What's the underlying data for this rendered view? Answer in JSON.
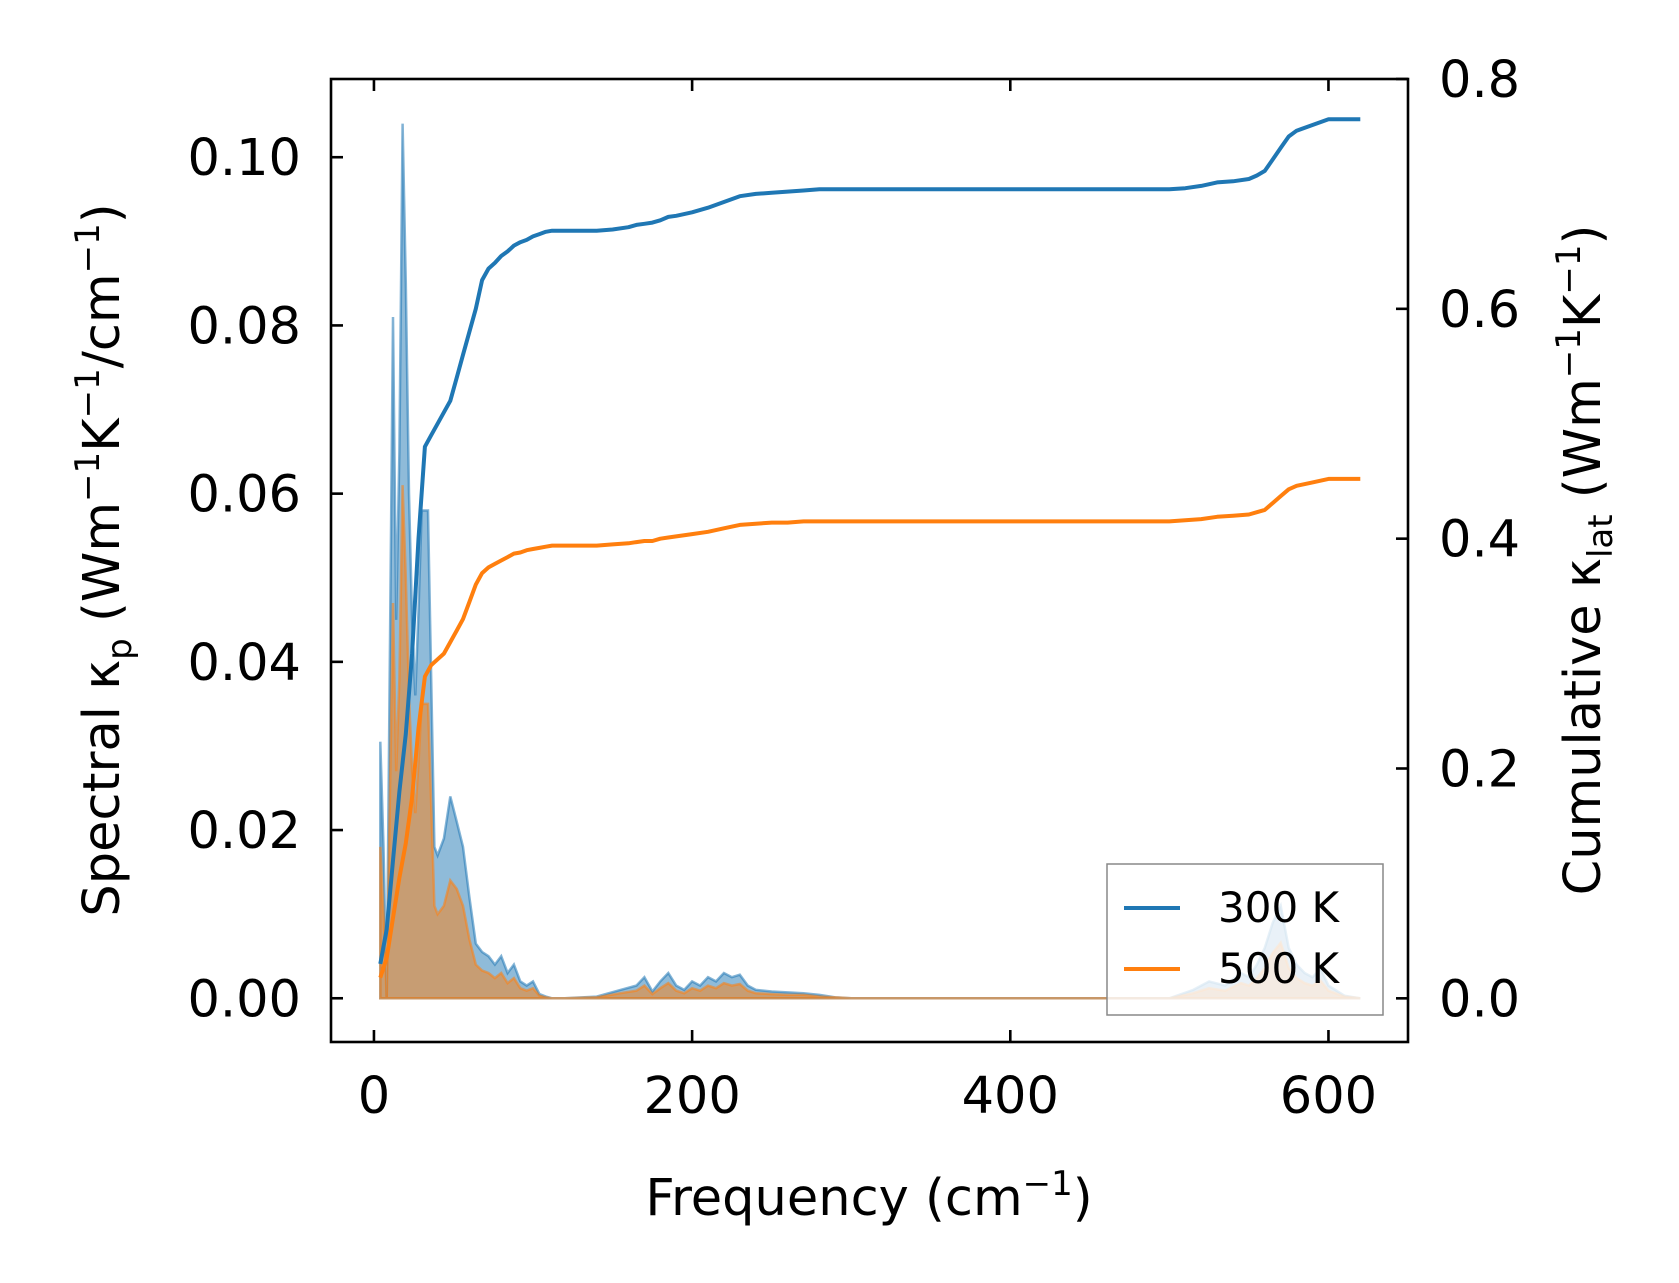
{
  "chart_data": {
    "type": "area",
    "x_label_text": "Frequency (cm",
    "x_label_sup": "−1",
    "x_label_end": ")",
    "y_left_label": {
      "pre": "Spectral κ",
      "sub": "p",
      "mid1": " (Wm",
      "sup1": "−1",
      "mid2": "K",
      "sup2": "−1",
      "mid3": "/cm",
      "sup3": "−1",
      "end": ")"
    },
    "y_right_label": {
      "pre": "Cumulative κ",
      "sub": "lat",
      "mid1": " (Wm",
      "sup1": "−1",
      "mid2": "K",
      "sup2": "−1",
      "end": ")"
    },
    "xlim": [
      -27,
      650
    ],
    "ylim_left": [
      -0.0052,
      0.1093
    ],
    "ylim_right": [
      -0.038,
      0.8
    ],
    "x_ticks": [
      0,
      200,
      400,
      600
    ],
    "x_tick_labels": [
      "0",
      "200",
      "400",
      "600"
    ],
    "y_left_ticks": [
      0.0,
      0.02,
      0.04,
      0.06,
      0.08,
      0.1
    ],
    "y_left_tick_labels": [
      "0.00",
      "0.02",
      "0.04",
      "0.06",
      "0.08",
      "0.10"
    ],
    "y_right_ticks": [
      0.0,
      0.2,
      0.4,
      0.6,
      0.8
    ],
    "y_right_tick_labels": [
      "0.0",
      "0.2",
      "0.4",
      "0.6",
      "0.8"
    ],
    "legend_position": "lower-right",
    "series": [
      {
        "name": "300 K",
        "color": "#1f77b4",
        "spectral": {
          "x": [
            4,
            6,
            8,
            12,
            14,
            16,
            18,
            20,
            22,
            24,
            26,
            28,
            30,
            34,
            38,
            40,
            44,
            48,
            52,
            56,
            60,
            64,
            68,
            72,
            76,
            80,
            84,
            88,
            92,
            96,
            100,
            104,
            108,
            112,
            120,
            140,
            155,
            165,
            170,
            175,
            180,
            185,
            190,
            195,
            200,
            205,
            210,
            215,
            220,
            225,
            230,
            235,
            240,
            250,
            260,
            270,
            280,
            290,
            300,
            500,
            515,
            525,
            535,
            545,
            550,
            555,
            560,
            565,
            570,
            575,
            580,
            585,
            590,
            595,
            600,
            610,
            620
          ],
          "y": [
            0.0305,
            0.018,
            0.0,
            0.081,
            0.045,
            0.065,
            0.104,
            0.085,
            0.06,
            0.045,
            0.036,
            0.046,
            0.058,
            0.058,
            0.018,
            0.017,
            0.019,
            0.024,
            0.021,
            0.018,
            0.012,
            0.0065,
            0.0055,
            0.005,
            0.004,
            0.005,
            0.003,
            0.004,
            0.002,
            0.0015,
            0.002,
            0.0005,
            0.0002,
            0.0,
            0.0,
            0.0002,
            0.001,
            0.0015,
            0.0025,
            0.0008,
            0.002,
            0.003,
            0.0015,
            0.001,
            0.002,
            0.0015,
            0.0025,
            0.002,
            0.003,
            0.0025,
            0.0028,
            0.0015,
            0.001,
            0.0008,
            0.0007,
            0.0006,
            0.0004,
            0.0001,
            0.0,
            0.0,
            0.001,
            0.002,
            0.0015,
            0.003,
            0.0025,
            0.004,
            0.006,
            0.009,
            0.011,
            0.006,
            0.004,
            0.003,
            0.0025,
            0.0035,
            0.0015,
            0.0003,
            0.0
          ]
        },
        "cumulative": {
          "x": [
            4,
            8,
            12,
            16,
            20,
            24,
            28,
            32,
            36,
            40,
            44,
            48,
            52,
            56,
            60,
            64,
            68,
            72,
            76,
            80,
            84,
            88,
            92,
            96,
            100,
            104,
            108,
            112,
            120,
            130,
            140,
            150,
            160,
            165,
            170,
            175,
            180,
            185,
            190,
            200,
            210,
            220,
            230,
            240,
            250,
            260,
            270,
            280,
            300,
            400,
            500,
            510,
            520,
            530,
            540,
            550,
            555,
            560,
            565,
            570,
            575,
            580,
            590,
            600,
            610,
            620
          ],
          "y": [
            0.03,
            0.06,
            0.12,
            0.18,
            0.23,
            0.3,
            0.4,
            0.48,
            0.49,
            0.5,
            0.51,
            0.52,
            0.54,
            0.56,
            0.58,
            0.6,
            0.625,
            0.635,
            0.64,
            0.646,
            0.65,
            0.655,
            0.658,
            0.66,
            0.663,
            0.665,
            0.667,
            0.668,
            0.668,
            0.668,
            0.668,
            0.669,
            0.671,
            0.673,
            0.674,
            0.675,
            0.677,
            0.68,
            0.681,
            0.684,
            0.688,
            0.693,
            0.698,
            0.7,
            0.701,
            0.702,
            0.703,
            0.704,
            0.704,
            0.704,
            0.704,
            0.705,
            0.707,
            0.71,
            0.711,
            0.713,
            0.716,
            0.72,
            0.73,
            0.74,
            0.75,
            0.755,
            0.76,
            0.765,
            0.765,
            0.765
          ]
        }
      },
      {
        "name": "500 K",
        "color": "#ff7f0e",
        "spectral": {
          "x": [
            4,
            6,
            8,
            12,
            14,
            16,
            18,
            20,
            22,
            24,
            26,
            28,
            30,
            34,
            38,
            40,
            44,
            48,
            52,
            56,
            60,
            64,
            68,
            72,
            76,
            80,
            84,
            88,
            92,
            96,
            100,
            104,
            108,
            112,
            120,
            140,
            155,
            165,
            170,
            175,
            180,
            185,
            190,
            195,
            200,
            205,
            210,
            215,
            220,
            225,
            230,
            235,
            240,
            250,
            260,
            270,
            280,
            290,
            300,
            500,
            515,
            525,
            535,
            545,
            550,
            555,
            560,
            565,
            570,
            575,
            580,
            585,
            590,
            595,
            600,
            610,
            620
          ],
          "y": [
            0.018,
            0.01,
            0.0,
            0.047,
            0.027,
            0.038,
            0.061,
            0.05,
            0.036,
            0.027,
            0.022,
            0.028,
            0.035,
            0.035,
            0.011,
            0.01,
            0.011,
            0.014,
            0.013,
            0.011,
            0.007,
            0.004,
            0.0033,
            0.003,
            0.0024,
            0.003,
            0.0018,
            0.0024,
            0.0012,
            0.0009,
            0.0012,
            0.0003,
            0.0001,
            0.0,
            0.0,
            0.0001,
            0.0006,
            0.0009,
            0.0015,
            0.0005,
            0.0012,
            0.0018,
            0.0009,
            0.0006,
            0.0012,
            0.0009,
            0.0015,
            0.0012,
            0.0018,
            0.0015,
            0.0017,
            0.0009,
            0.0006,
            0.0005,
            0.0004,
            0.0004,
            0.0002,
            0.0001,
            0.0,
            0.0,
            0.0006,
            0.0012,
            0.0009,
            0.0018,
            0.0015,
            0.0024,
            0.0036,
            0.0054,
            0.0066,
            0.0036,
            0.0024,
            0.0018,
            0.0015,
            0.0021,
            0.0009,
            0.0002,
            0.0
          ]
        },
        "cumulative": {
          "x": [
            4,
            8,
            12,
            16,
            20,
            24,
            28,
            32,
            36,
            40,
            44,
            48,
            52,
            56,
            60,
            64,
            68,
            72,
            76,
            80,
            84,
            88,
            92,
            96,
            100,
            104,
            108,
            112,
            120,
            130,
            140,
            150,
            160,
            165,
            170,
            175,
            180,
            185,
            190,
            200,
            210,
            220,
            230,
            240,
            250,
            260,
            270,
            280,
            300,
            400,
            500,
            510,
            520,
            530,
            540,
            550,
            555,
            560,
            565,
            570,
            575,
            580,
            590,
            600,
            610,
            620
          ],
          "y": [
            0.018,
            0.035,
            0.07,
            0.105,
            0.135,
            0.175,
            0.235,
            0.28,
            0.29,
            0.295,
            0.3,
            0.31,
            0.32,
            0.33,
            0.345,
            0.36,
            0.37,
            0.375,
            0.378,
            0.381,
            0.384,
            0.387,
            0.388,
            0.39,
            0.391,
            0.392,
            0.393,
            0.394,
            0.394,
            0.394,
            0.394,
            0.395,
            0.396,
            0.397,
            0.398,
            0.398,
            0.4,
            0.401,
            0.402,
            0.404,
            0.406,
            0.409,
            0.412,
            0.413,
            0.414,
            0.414,
            0.415,
            0.415,
            0.415,
            0.415,
            0.415,
            0.416,
            0.417,
            0.419,
            0.42,
            0.421,
            0.423,
            0.425,
            0.431,
            0.437,
            0.443,
            0.446,
            0.449,
            0.452,
            0.452,
            0.452
          ]
        }
      }
    ]
  }
}
